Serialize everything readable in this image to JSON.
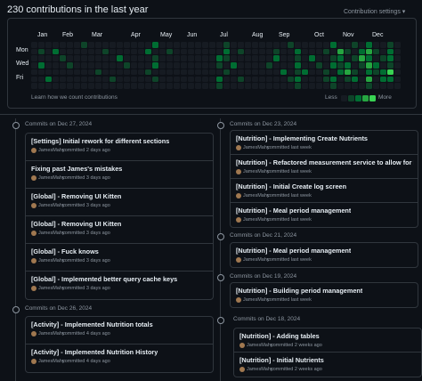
{
  "header": {
    "title": "230 contributions in the last year",
    "settings": "Contribution settings ▾"
  },
  "graph": {
    "months": [
      "Jan",
      "Feb",
      "Mar",
      "Apr",
      "May",
      "Jun",
      "Jul",
      "Aug",
      "Sep",
      "Oct",
      "Nov",
      "Dec"
    ],
    "days": [
      "Mon",
      "Wed",
      "Fri"
    ],
    "levels": [
      [
        0,
        0,
        0,
        0,
        0,
        0,
        0,
        1,
        0,
        0,
        0,
        0,
        0,
        0,
        0,
        0,
        0,
        2,
        0,
        0,
        0,
        0,
        0,
        0,
        0,
        0,
        0,
        1,
        0,
        0,
        0,
        0,
        0,
        0,
        0,
        0,
        1,
        0,
        0,
        0,
        0,
        0,
        2,
        0,
        0,
        1,
        0,
        2,
        0,
        0,
        1,
        0
      ],
      [
        0,
        1,
        0,
        2,
        0,
        0,
        0,
        0,
        0,
        0,
        1,
        0,
        0,
        0,
        0,
        0,
        2,
        0,
        0,
        1,
        0,
        0,
        0,
        0,
        0,
        0,
        0,
        2,
        0,
        1,
        0,
        0,
        0,
        0,
        1,
        0,
        0,
        2,
        0,
        0,
        0,
        1,
        0,
        3,
        1,
        0,
        2,
        3,
        1,
        0,
        2,
        0
      ],
      [
        0,
        0,
        0,
        0,
        1,
        0,
        0,
        0,
        0,
        0,
        0,
        0,
        2,
        0,
        0,
        0,
        0,
        1,
        0,
        0,
        0,
        0,
        0,
        0,
        0,
        0,
        2,
        1,
        0,
        0,
        0,
        0,
        0,
        0,
        2,
        0,
        0,
        1,
        0,
        2,
        0,
        0,
        1,
        2,
        0,
        1,
        3,
        2,
        0,
        1,
        2,
        0
      ],
      [
        0,
        2,
        0,
        0,
        0,
        1,
        0,
        0,
        0,
        0,
        0,
        0,
        0,
        1,
        0,
        0,
        0,
        2,
        0,
        0,
        0,
        0,
        0,
        0,
        0,
        0,
        1,
        0,
        2,
        0,
        0,
        0,
        0,
        1,
        0,
        0,
        0,
        2,
        0,
        0,
        1,
        0,
        2,
        1,
        2,
        0,
        1,
        3,
        2,
        0,
        1,
        0
      ],
      [
        0,
        0,
        0,
        0,
        0,
        0,
        0,
        0,
        0,
        1,
        0,
        0,
        0,
        0,
        0,
        0,
        1,
        0,
        0,
        0,
        0,
        0,
        0,
        0,
        0,
        0,
        0,
        1,
        0,
        0,
        0,
        0,
        0,
        0,
        0,
        2,
        0,
        1,
        2,
        0,
        0,
        1,
        0,
        2,
        3,
        1,
        0,
        2,
        1,
        2,
        4,
        0
      ],
      [
        0,
        0,
        2,
        0,
        0,
        0,
        0,
        0,
        0,
        0,
        0,
        1,
        0,
        0,
        0,
        0,
        0,
        1,
        0,
        0,
        0,
        0,
        0,
        0,
        0,
        0,
        2,
        0,
        0,
        1,
        0,
        0,
        0,
        0,
        0,
        0,
        1,
        2,
        0,
        0,
        0,
        1,
        2,
        0,
        1,
        2,
        0,
        3,
        0,
        2,
        2,
        0
      ],
      [
        0,
        0,
        0,
        0,
        0,
        0,
        0,
        0,
        0,
        0,
        0,
        0,
        0,
        0,
        0,
        0,
        0,
        0,
        0,
        0,
        0,
        0,
        0,
        0,
        0,
        0,
        1,
        0,
        0,
        0,
        0,
        0,
        0,
        0,
        0,
        0,
        0,
        1,
        0,
        0,
        0,
        0,
        1,
        0,
        0,
        0,
        0,
        1,
        0,
        0,
        0,
        0
      ]
    ],
    "footer_link": "Learn how we count contributions",
    "legend_less": "Less",
    "legend_more": "More"
  },
  "timeline": {
    "left": [
      {
        "date": "Commits on Dec 27, 2024",
        "commits": [
          {
            "title": "[Settings] Initial rework for different sections",
            "author": "JamesMahy",
            "time": "committed 2 days ago"
          },
          {
            "title": "Fixing past James's mistakes",
            "author": "JamesMahy",
            "time": "committed 3 days ago"
          },
          {
            "title": "[Global] - Removing UI Kitten",
            "author": "JamesMahy",
            "time": "committed 3 days ago"
          },
          {
            "title": "[Global] - Removing UI Kitten",
            "author": "JamesMahy",
            "time": "committed 3 days ago"
          },
          {
            "title": "[Global] - Fuck knows",
            "author": "JamesMahy",
            "time": "committed 3 days ago"
          },
          {
            "title": "[Global] - Implemented better query cache keys",
            "author": "JamesMahy",
            "time": "committed 3 days ago"
          }
        ]
      },
      {
        "date": "Commits on Dec 26, 2024",
        "commits": [
          {
            "title": "[Activity] - Implemented Nutrition totals",
            "author": "JamesMahy",
            "time": "committed 4 days ago"
          },
          {
            "title": "[Activity] - Implemented Nutrition History",
            "author": "JamesMahy",
            "time": "committed 4 days ago"
          }
        ]
      }
    ],
    "right": [
      {
        "date": "Commits on Dec 23, 2024",
        "commits": [
          {
            "title": "[Nutrition] - Implementing Create Nutrients",
            "author": "JamesMahy",
            "time": "committed last week"
          },
          {
            "title": "[Nutrition] - Refactored measurement service to allow for Nutrients",
            "author": "JamesMahy",
            "time": "committed last week"
          },
          {
            "title": "[Nutrition] - Initial Create log screen",
            "author": "JamesMahy",
            "time": "committed last week"
          },
          {
            "title": "[Nutrition] - Meal period management",
            "author": "JamesMahy",
            "time": "committed last week"
          }
        ]
      },
      {
        "date": "Commits on Dec 21, 2024",
        "commits": [
          {
            "title": "[Nutrition] - Meal period management",
            "author": "JamesMahy",
            "time": "committed last week"
          }
        ]
      },
      {
        "date": "Commits on Dec 19, 2024",
        "commits": [
          {
            "title": "[Nutrition] - Building period management",
            "author": "JamesMahy",
            "time": "committed last week"
          }
        ]
      },
      {
        "date": "Commits on Dec 18, 2024",
        "commits": [
          {
            "title": "[Nutrition] - Adding tables",
            "author": "JamesMahy",
            "time": "committed 2 weeks ago"
          },
          {
            "title": "[Nutrition] - Initial Nutrients",
            "author": "JamesMahy",
            "time": "committed 2 weeks ago"
          }
        ]
      }
    ]
  }
}
